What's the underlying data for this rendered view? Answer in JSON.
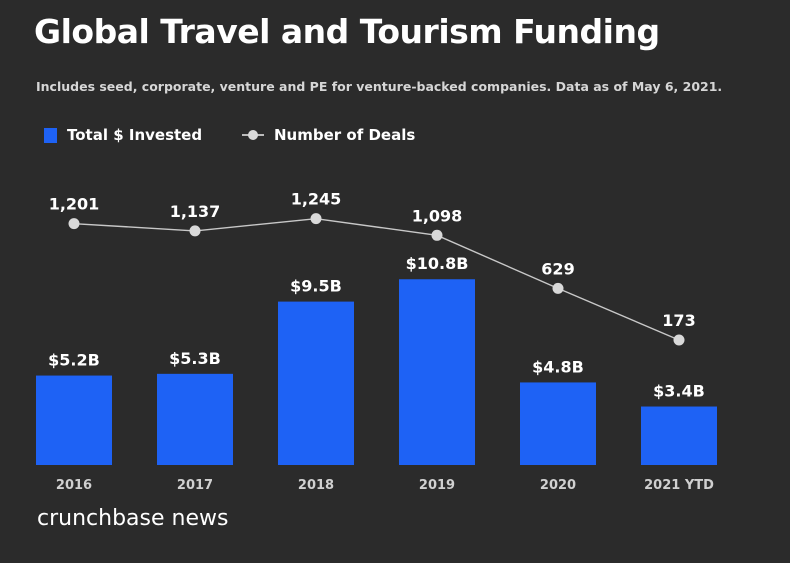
{
  "title": "Global Travel and Tourism Funding",
  "subtitle": "Includes seed, corporate, venture and PE for venture-backed companies. Data as of May 6, 2021.",
  "legend": {
    "bars_label": "Total $ Invested",
    "line_label": "Number of Deals"
  },
  "brand": "crunchbase news",
  "colors": {
    "background": "#2b2b2b",
    "bar": "#1e62f5",
    "line": "#c8c8c8",
    "marker": "#d9d9d9",
    "text": "#ffffff",
    "tick": "#d0d0d0"
  },
  "chart_data": {
    "type": "bar",
    "categories": [
      "2016",
      "2017",
      "2018",
      "2019",
      "2020",
      "2021 YTD"
    ],
    "series": [
      {
        "name": "Total $ Invested",
        "type": "bar",
        "values": [
          5.2,
          5.3,
          9.5,
          10.8,
          4.8,
          3.4
        ],
        "labels": [
          "$5.2B",
          "$5.3B",
          "$9.5B",
          "$10.8B",
          "$4.8B",
          "$3.4B"
        ]
      },
      {
        "name": "Number of Deals",
        "type": "line",
        "values": [
          1201,
          1137,
          1245,
          1098,
          629,
          173
        ],
        "labels": [
          "1,201",
          "1,137",
          "1,245",
          "1,098",
          "629",
          "173"
        ]
      }
    ],
    "grid": false,
    "legend_position": "top-left"
  }
}
